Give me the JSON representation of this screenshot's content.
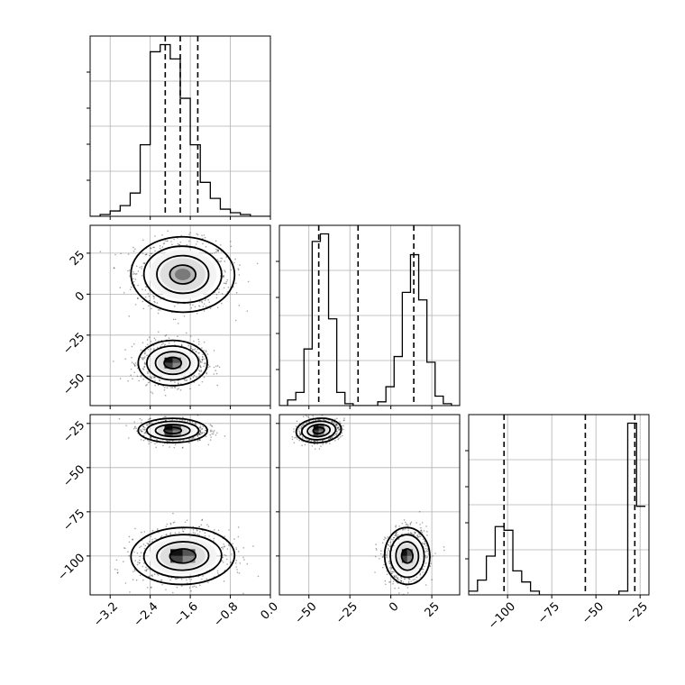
{
  "chart_data": {
    "type": "corner",
    "grid": true,
    "parameters": [
      {
        "index": 0,
        "range": [
          -3.6,
          0.0
        ],
        "ticks": [
          -3.2,
          -2.4,
          -1.6,
          -0.8,
          0.0
        ],
        "tick_labels": [
          "−3.2",
          "−2.4",
          "−1.6",
          "−0.8",
          "0.0"
        ],
        "quantiles": [
          -2.1,
          -1.8,
          -1.45
        ],
        "histogram": {
          "bins": [
            -3.6,
            -3.4,
            -3.2,
            -3.0,
            -2.8,
            -2.6,
            -2.4,
            -2.2,
            -2.0,
            -1.8,
            -1.6,
            -1.4,
            -1.2,
            -1.0,
            -0.8,
            -0.6,
            -0.4,
            -0.2,
            0.0
          ],
          "density": [
            0.0,
            0.01,
            0.03,
            0.06,
            0.13,
            0.4,
            0.92,
            0.96,
            0.88,
            0.66,
            0.4,
            0.19,
            0.1,
            0.04,
            0.02,
            0.01,
            0.0,
            0.0
          ]
        }
      },
      {
        "index": 1,
        "range": [
          -68,
          42
        ],
        "ticks": [
          -50,
          -25,
          0,
          25
        ],
        "tick_labels": [
          "−50",
          "−25",
          "0",
          "25"
        ],
        "quantiles": [
          -44,
          -20,
          14
        ],
        "histogram": {
          "bins": [
            -68,
            -63,
            -58,
            -53,
            -48,
            -43,
            -38,
            -33,
            -28,
            -23,
            -18,
            -13,
            -8,
            -3,
            2,
            7,
            12,
            17,
            22,
            27,
            32,
            37,
            42
          ],
          "density": [
            0.0,
            0.03,
            0.07,
            0.3,
            0.87,
            0.91,
            0.46,
            0.07,
            0.01,
            0.0,
            0.0,
            0.0,
            0.02,
            0.1,
            0.26,
            0.6,
            0.8,
            0.56,
            0.23,
            0.05,
            0.01,
            0.0
          ]
        }
      },
      {
        "index": 2,
        "range": [
          -122,
          -20
        ],
        "ticks": [
          -100,
          -75,
          -50,
          -25
        ],
        "tick_labels": [
          "−100",
          "−75",
          "−50",
          "−25"
        ],
        "quantiles": [
          -102,
          -56,
          -28
        ],
        "histogram": {
          "bins": [
            -122,
            -117,
            -112,
            -107,
            -102,
            -97,
            -92,
            -87,
            -82,
            -77,
            -72,
            -67,
            -62,
            -57,
            -52,
            -47,
            -42,
            -37,
            -32,
            -27,
            -22
          ],
          "density": [
            0.02,
            0.08,
            0.21,
            0.37,
            0.35,
            0.13,
            0.07,
            0.02,
            0.0,
            0.0,
            0.0,
            0.0,
            0.0,
            0.0,
            0.0,
            0.0,
            0.0,
            0.02,
            0.93,
            0.48
          ]
        }
      }
    ],
    "pairs": [
      {
        "x_index": 0,
        "y_index": 1,
        "modes": [
          {
            "center": [
              -1.75,
              12
            ],
            "sigma": [
              0.45,
              10
            ],
            "rho": -0.05
          },
          {
            "center": [
              -1.95,
              -42
            ],
            "sigma": [
              0.3,
              6
            ],
            "rho": 0.0
          }
        ]
      },
      {
        "x_index": 0,
        "y_index": 2,
        "modes": [
          {
            "center": [
              -1.95,
              -29
            ],
            "sigma": [
              0.3,
              3
            ],
            "rho": 0.0
          },
          {
            "center": [
              -1.75,
              -100
            ],
            "sigma": [
              0.45,
              7
            ],
            "rho": 0.05
          }
        ]
      },
      {
        "x_index": 1,
        "y_index": 2,
        "modes": [
          {
            "center": [
              -44,
              -29
            ],
            "sigma": [
              6,
              3
            ],
            "rho": 0.2
          },
          {
            "center": [
              10,
              -100
            ],
            "sigma": [
              6,
              7
            ],
            "rho": 0.1
          }
        ]
      }
    ],
    "contour_levels_sigma": [
      0.5,
      1.0,
      1.5,
      2.0
    ],
    "colors": {
      "line": "#000000",
      "grid": "#b0b0b0",
      "points": "#000000"
    }
  }
}
